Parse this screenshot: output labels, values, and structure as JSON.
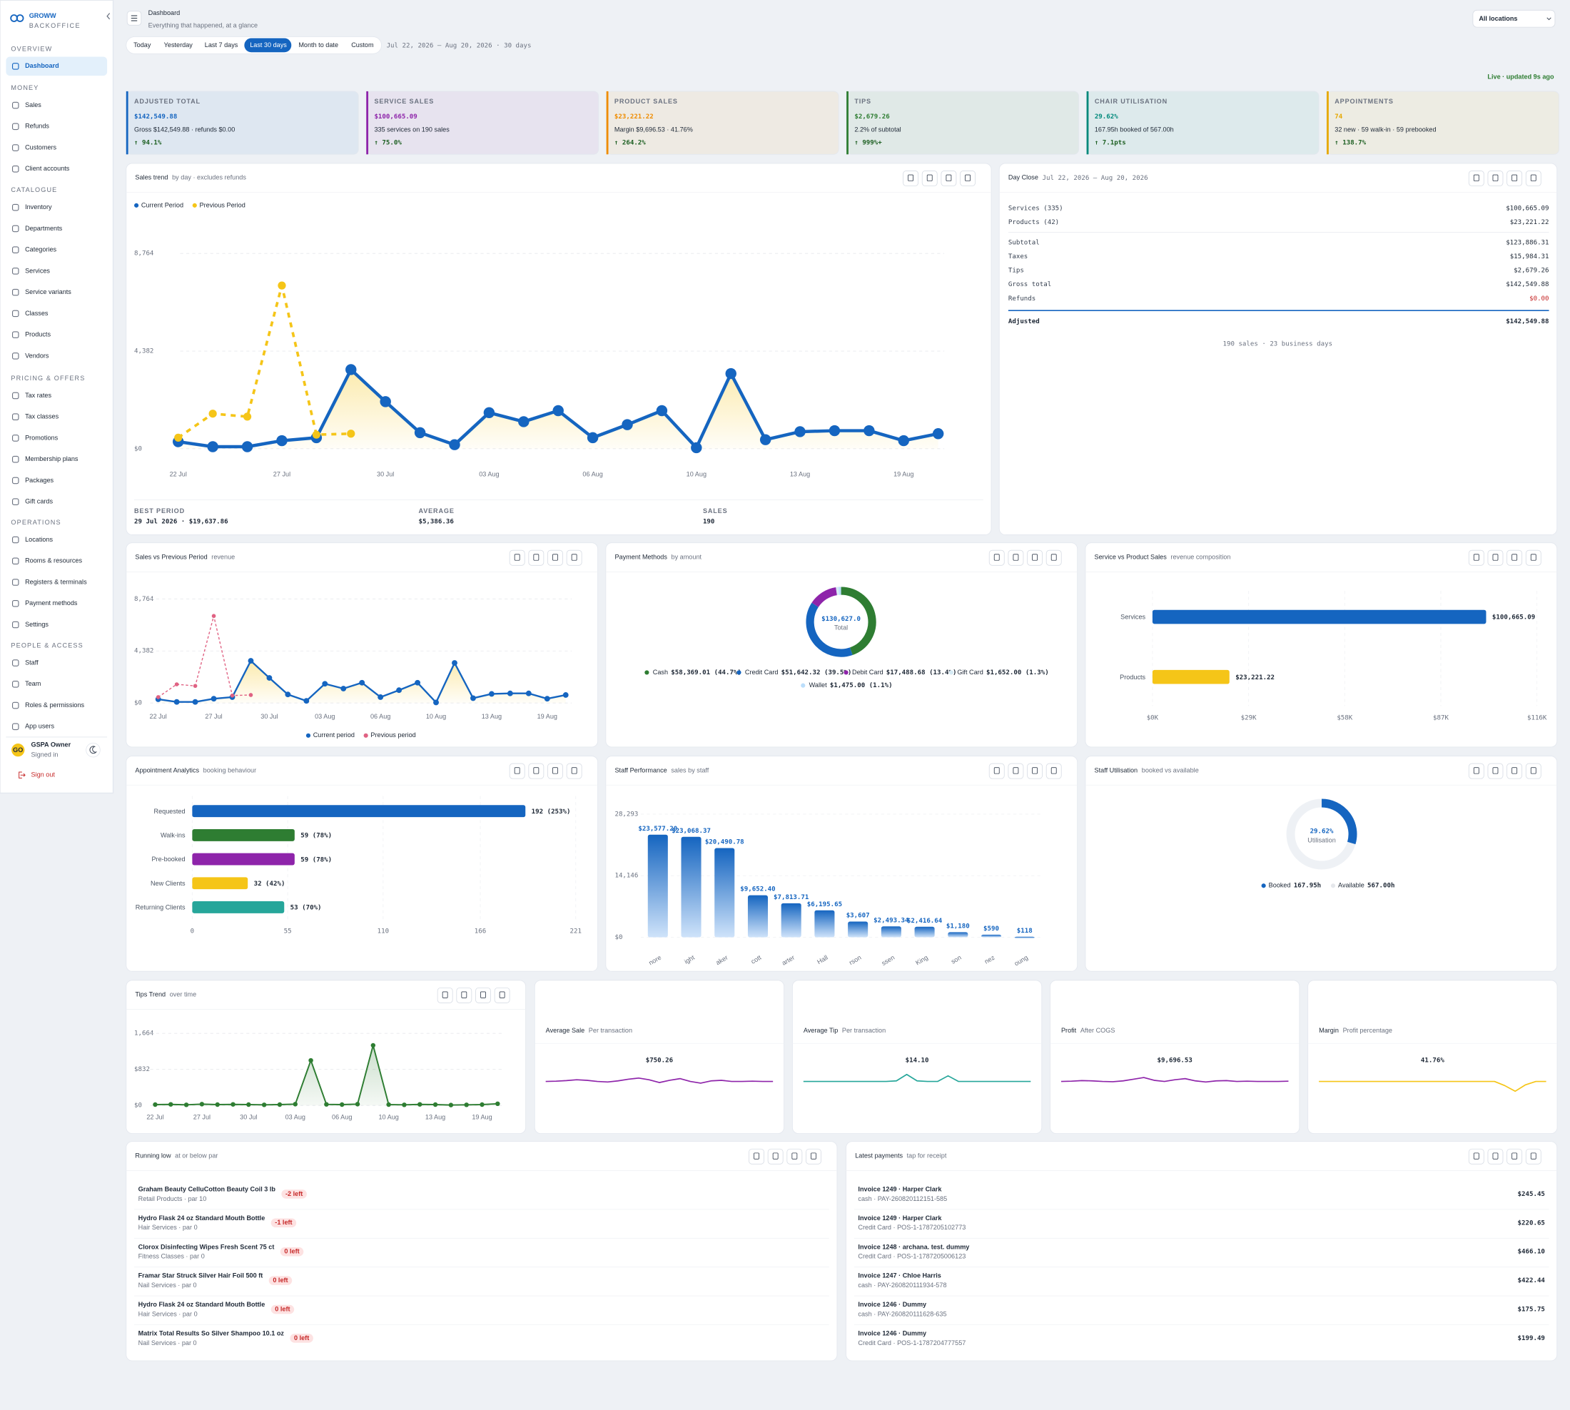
{
  "sidebar": {
    "brand": "GROWW",
    "brand_sub": "BACKOFFICE",
    "sections": [
      {
        "title": "OVERVIEW",
        "items": [
          "Dashboard"
        ]
      },
      {
        "title": "MONEY",
        "items": [
          "Sales",
          "Refunds",
          "Customers",
          "Client accounts"
        ]
      },
      {
        "title": "CATALOGUE",
        "items": [
          "Inventory",
          "Departments",
          "Categories",
          "Services",
          "Service variants",
          "Classes",
          "Products",
          "Vendors"
        ]
      },
      {
        "title": "PRICING & OFFERS",
        "items": [
          "Tax rates",
          "Tax classes",
          "Promotions",
          "Membership plans",
          "Packages",
          "Gift cards"
        ]
      },
      {
        "title": "OPERATIONS",
        "items": [
          "Locations",
          "Rooms & resources",
          "Registers & terminals",
          "Payment methods",
          "Settings"
        ]
      },
      {
        "title": "PEOPLE & ACCESS",
        "items": [
          "Staff",
          "Team",
          "Roles & permissions",
          "App users"
        ]
      }
    ],
    "user": {
      "initials": "GO",
      "name": "GSPA Owner",
      "status": "Signed in"
    },
    "sign_out": "Sign out"
  },
  "header": {
    "title": "Dashboard",
    "subtitle": "Everything that happened, at a glance",
    "location": "All locations",
    "ranges": [
      "Today",
      "Yesterday",
      "Last 7 days",
      "Last 30 days",
      "Month to date",
      "Custom"
    ],
    "range_text": "Jul 22, 2026 – Aug 20, 2026 · 30 days",
    "live": "Live · updated 9s ago"
  },
  "kpis": [
    {
      "label": "ADJUSTED TOTAL",
      "value": "$142,549.88",
      "sub": "Gross $142,549.88 · refunds $0.00",
      "delta": "↑ 94.1%",
      "color": "#1565c0"
    },
    {
      "label": "SERVICE SALES",
      "value": "$100,665.09",
      "sub": "335 services on 190 sales",
      "delta": "↑ 75.0%",
      "color": "#8e24aa"
    },
    {
      "label": "PRODUCT SALES",
      "value": "$23,221.22",
      "sub": "Margin $9,696.53 · 41.76%",
      "delta": "↑ 264.2%",
      "color": "#ef8c00"
    },
    {
      "label": "TIPS",
      "value": "$2,679.26",
      "sub": "2.2% of subtotal",
      "delta": "↑ 999%+",
      "color": "#2e7d32"
    },
    {
      "label": "CHAIR UTILISATION",
      "value": "29.62%",
      "sub": "167.95h booked of 567.00h",
      "delta": "↑ 7.1pts",
      "color": "#00897b"
    },
    {
      "label": "APPOINTMENTS",
      "value": "74",
      "sub": "32 new · 59 walk-in · 59 prebooked",
      "delta": "↑ 138.7%",
      "color": "#e6a800"
    }
  ],
  "day_close": {
    "title": "Day Close",
    "range": "Jul 22, 2026 – Aug 20, 2026",
    "rows": [
      [
        "Services (335)",
        "$100,665.09"
      ],
      [
        "Products (42)",
        "$23,221.22"
      ],
      [
        "Subtotal",
        "$123,886.31"
      ],
      [
        "Taxes",
        "$15,984.31"
      ],
      [
        "Tips",
        "$2,679.26"
      ],
      [
        "Gross total",
        "$142,549.88"
      ],
      [
        "Refunds",
        "$0.00"
      ]
    ],
    "adjusted": [
      "Adjusted",
      "$142,549.88"
    ],
    "footer": "190 sales · 23 business days"
  },
  "stat_cards": [
    {
      "title": "Average Sale",
      "subtitle": "Per transaction",
      "value": "$750.26",
      "color": "#8e24aa",
      "ylim": [
        0,
        10
      ],
      "spark": [
        5,
        5.1,
        5.3,
        5.6,
        5.4,
        5,
        4.8,
        5.2,
        5.8,
        6.2,
        5.6,
        4.6,
        5.4,
        6,
        5,
        4.4,
        5.2,
        5.4,
        5,
        5,
        5.1,
        5,
        5
      ]
    },
    {
      "title": "Average Tip",
      "subtitle": "Per transaction",
      "value": "$14.10",
      "color": "#26a69a",
      "ylim": [
        0,
        10
      ],
      "spark": [
        5,
        5,
        5,
        5,
        5,
        5,
        5,
        5,
        5,
        5.2,
        7.5,
        5.2,
        5,
        5,
        7,
        5,
        5,
        5,
        5,
        5,
        5,
        5,
        5
      ]
    },
    {
      "title": "Profit",
      "subtitle": "After COGS",
      "value": "$9,696.53",
      "color": "#8e24aa",
      "ylim": [
        0,
        10
      ],
      "spark": [
        5,
        5.1,
        5.3,
        5.2,
        5,
        4.9,
        5.2,
        5.8,
        6.4,
        5.4,
        5,
        5.6,
        6,
        5.2,
        4.8,
        5.2,
        5.3,
        5,
        5.1,
        5,
        5,
        5,
        5.1
      ]
    },
    {
      "title": "Margin",
      "subtitle": "Profit percentage",
      "value": "41.76%",
      "color": "#f5c518",
      "ylim": [
        0,
        10
      ],
      "spark": [
        5,
        5,
        5,
        5,
        5,
        5,
        5,
        5,
        5,
        5,
        5,
        5,
        5,
        5,
        5,
        5,
        5,
        5,
        3.5,
        1.5,
        3.8,
        5,
        5
      ]
    }
  ],
  "low_stock": {
    "title": "Running low",
    "subtitle": "at or below par",
    "items": [
      {
        "name": "Graham Beauty CelluCotton Beauty Coil 3 lb",
        "meta": "Retail Products · par 10",
        "badge": "-2 left"
      },
      {
        "name": "Hydro Flask 24 oz Standard Mouth Bottle",
        "meta": "Hair Services · par 0",
        "badge": "-1 left"
      },
      {
        "name": "Clorox Disinfecting Wipes Fresh Scent 75 ct",
        "meta": "Fitness Classes · par 0",
        "badge": "0 left"
      },
      {
        "name": "Framar Star Struck Silver Hair Foil 500 ft",
        "meta": "Nail Services · par 0",
        "badge": "0 left"
      },
      {
        "name": "Hydro Flask 24 oz Standard Mouth Bottle",
        "meta": "Hair Services · par 0",
        "badge": "0 left"
      },
      {
        "name": "Matrix Total Results So Silver Shampoo 10.1 oz",
        "meta": "Nail Services · par 0",
        "badge": "0 left"
      }
    ]
  },
  "payments": {
    "title": "Latest payments",
    "subtitle": "tap for receipt",
    "items": [
      {
        "name": "Invoice 1249 · Harper Clark",
        "meta": "cash · PAY-260820112151-585",
        "amount": "$245.45"
      },
      {
        "name": "Invoice 1249 · Harper Clark",
        "meta": "Credit Card · POS-1-1787205102773",
        "amount": "$220.65"
      },
      {
        "name": "Invoice 1248 · archana. test. dummy",
        "meta": "Credit Card · POS-1-1787205006123",
        "amount": "$466.10"
      },
      {
        "name": "Invoice 1247 · Chloe Harris",
        "meta": "cash · PAY-260820111934-578",
        "amount": "$422.44"
      },
      {
        "name": "Invoice 1246 · Dummy",
        "meta": "cash · PAY-260820111628-635",
        "amount": "$175.75"
      },
      {
        "name": "Invoice 1246 · Dummy",
        "meta": "Credit Card · POS-1-1787204777557",
        "amount": "$199.49"
      }
    ]
  },
  "chart_data": [
    {
      "type": "line",
      "title": "Sales trend",
      "subtitle": "by day · excludes refunds",
      "categories": [
        "22 Jul",
        null,
        null,
        "27 Jul",
        null,
        null,
        "30 Jul",
        null,
        null,
        "03 Aug",
        null,
        null,
        "06 Aug",
        null,
        null,
        "10 Aug",
        null,
        null,
        "13 Aug",
        null,
        null,
        "19 Aug",
        null
      ],
      "series": [
        {
          "name": "Current Period",
          "color": "#1565c0",
          "values": [
            315,
            90,
            90,
            360,
            494,
            3551,
            2112,
            719,
            180,
            1618,
            1213,
            1708,
            494,
            1079,
            1708,
            45,
            3371,
            405,
            764,
            809,
            809,
            360,
            674
          ]
        },
        {
          "name": "Previous Period",
          "color": "#f5c518",
          "dashed": true,
          "values": [
            494,
            1573,
            1438,
            7326,
            629,
            674,
            null,
            null,
            null,
            null,
            null,
            null,
            null,
            null,
            null,
            null,
            null,
            null,
            null,
            null,
            null,
            null,
            null
          ]
        }
      ],
      "ylim": [
        0,
        8764
      ],
      "yticks": [
        {
          "value": 0,
          "label": "$0"
        },
        {
          "value": 4382,
          "label": "4,382"
        },
        {
          "value": 8764,
          "label": "8,764"
        }
      ],
      "grid": true,
      "legend": "top-left",
      "area": true,
      "stats": [
        {
          "label": "BEST PERIOD",
          "value": "29 Jul 2026 · $19,637.86"
        },
        {
          "label": "AVERAGE",
          "value": "$5,386.36"
        },
        {
          "label": "SALES",
          "value": "190"
        }
      ]
    },
    {
      "type": "line",
      "title": "Sales vs Previous Period",
      "subtitle": "revenue",
      "categories": [
        "22 Jul",
        null,
        null,
        "27 Jul",
        null,
        null,
        "30 Jul",
        null,
        null,
        "03 Aug",
        null,
        null,
        "06 Aug",
        null,
        null,
        "10 Aug",
        null,
        null,
        "13 Aug",
        null,
        null,
        "19 Aug",
        null
      ],
      "series": [
        {
          "name": "Current period",
          "color": "#1565c0",
          "values": [
            315,
            90,
            90,
            360,
            494,
            3551,
            2112,
            719,
            180,
            1618,
            1213,
            1708,
            494,
            1079,
            1708,
            45,
            3371,
            405,
            764,
            809,
            809,
            360,
            674
          ]
        },
        {
          "name": "Previous period",
          "color": "#e06283",
          "dashed": true,
          "values": [
            494,
            1573,
            1438,
            7326,
            629,
            674,
            null,
            null,
            null,
            null,
            null,
            null,
            null,
            null,
            null,
            null,
            null,
            null,
            null,
            null,
            null,
            null,
            null
          ]
        }
      ],
      "ylim": [
        0,
        8764
      ],
      "yticks": [
        {
          "value": 0,
          "label": "$0"
        },
        {
          "value": 4382,
          "label": "4,382"
        },
        {
          "value": 8764,
          "label": "8,764"
        }
      ],
      "grid": true,
      "legend": "bottom",
      "area": true
    },
    {
      "type": "donut",
      "title": "Payment Methods",
      "subtitle": "by amount",
      "categories": [
        "Cash",
        "Credit Card",
        "Debit Card",
        "Gift Card",
        "Wallet"
      ],
      "values": [
        58369.01,
        51642.32,
        17488.68,
        1652.0,
        1475.0
      ],
      "value_labels": [
        "$58,369.01 (44.7%)",
        "$51,642.32 (39.5%)",
        "$17,488.68 (13.4%)",
        "$1,652.00 (1.3%)",
        "$1,475.00 (1.1%)"
      ],
      "colors": [
        "#2e7d32",
        "#1565c0",
        "#8e24aa",
        "#d6ebf5",
        "#bbdefb"
      ],
      "center_label": "$130,627.0",
      "center_sub": "Total",
      "legend": "bottom"
    },
    {
      "type": "hbar",
      "title": "Service vs Product Sales",
      "subtitle": "revenue composition",
      "categories": [
        "Services",
        "Products"
      ],
      "values": [
        100665.09,
        23221.22
      ],
      "value_labels": [
        "$100,665.09",
        "$23,221.22"
      ],
      "colors": [
        "#1565c0",
        "#f5c518"
      ],
      "xlim": [
        0,
        116000
      ],
      "xticks": [
        {
          "value": 0,
          "label": "$0K"
        },
        {
          "value": 29000,
          "label": "$29K"
        },
        {
          "value": 58000,
          "label": "$58K"
        },
        {
          "value": 87000,
          "label": "$87K"
        },
        {
          "value": 116000,
          "label": "$116K"
        }
      ],
      "grid": true
    },
    {
      "type": "hbar",
      "title": "Appointment Analytics",
      "subtitle": "booking behaviour",
      "categories": [
        "Requested",
        "Walk-ins",
        "Pre-booked",
        "New Clients",
        "Returning Clients"
      ],
      "values": [
        192,
        59,
        59,
        32,
        53
      ],
      "value_labels": [
        "192 (253%)",
        "59 (78%)",
        "59 (78%)",
        "32 (42%)",
        "53 (70%)"
      ],
      "colors": [
        "#1565c0",
        "#2e7d32",
        "#8e24aa",
        "#f5c518",
        "#26a69a"
      ],
      "xlim": [
        0,
        221
      ],
      "xticks": [
        0,
        55,
        110,
        166,
        221
      ],
      "grid": true
    },
    {
      "type": "bar",
      "title": "Staff Performance",
      "subtitle": "sales by staff",
      "categories": [
        "nore",
        "ight",
        "aker",
        "cott",
        "arter",
        "Hall",
        "rson",
        "ssen",
        "King",
        "son",
        "nez",
        "oung"
      ],
      "values": [
        23577.2,
        23068.37,
        20490.78,
        9652.4,
        7813.71,
        6195.65,
        3607,
        2493.34,
        2416.64,
        1180,
        590,
        118
      ],
      "value_labels": [
        "$23,577.20",
        "$23,068.37",
        "$20,490.78",
        "$9,652.40",
        "$7,813.71",
        "$6,195.65",
        "$3,607",
        "$2,493.34",
        "$2,416.64",
        "$1,180",
        "$590",
        "$118"
      ],
      "color": "#1565c0",
      "ylim": [
        0,
        28293
      ],
      "yticks": [
        {
          "value": 0,
          "label": "$0"
        },
        {
          "value": 14146,
          "label": "14,146"
        },
        {
          "value": 28293,
          "label": "28,293"
        }
      ],
      "grid": true
    },
    {
      "type": "gauge",
      "title": "Staff Utilisation",
      "subtitle": "booked vs available",
      "categories": [
        "Booked",
        "Available"
      ],
      "values": [
        167.95,
        567.0
      ],
      "value_labels": [
        "167.95h",
        "567.00h"
      ],
      "colors": [
        "#1565c0",
        "#eef1f5"
      ],
      "center_label": "29.62%",
      "center_sub": "Utilisation"
    },
    {
      "type": "line",
      "title": "Tips Trend",
      "subtitle": "over time",
      "categories": [
        "22 Jul",
        null,
        null,
        "27 Jul",
        null,
        null,
        "30 Jul",
        null,
        null,
        "03 Aug",
        null,
        null,
        "06 Aug",
        null,
        null,
        "10 Aug",
        null,
        null,
        "13 Aug",
        null,
        null,
        "19 Aug",
        null
      ],
      "values": [
        20,
        25,
        15,
        30,
        20,
        25,
        20,
        15,
        20,
        30,
        1040,
        25,
        20,
        30,
        1387,
        20,
        15,
        25,
        20,
        10,
        15,
        20,
        40
      ],
      "color": "#2e7d32",
      "ylim": [
        0,
        1664
      ],
      "yticks": [
        {
          "value": 0,
          "label": "$0"
        },
        {
          "value": 832,
          "label": "$832"
        },
        {
          "value": 1664,
          "label": "1,664"
        }
      ],
      "grid": true,
      "area": true
    }
  ]
}
